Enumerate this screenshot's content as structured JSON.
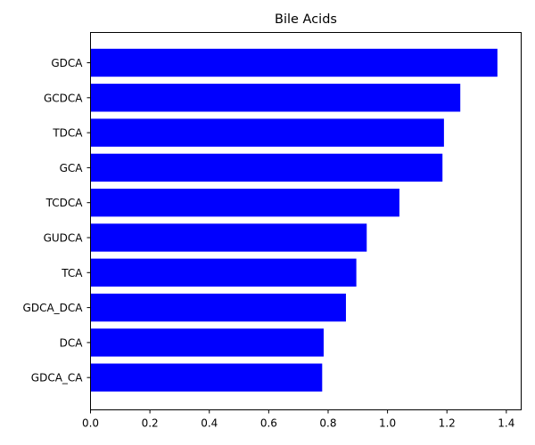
{
  "chart_data": {
    "type": "bar",
    "orientation": "horizontal",
    "title": "Bile Acids",
    "xlabel": "",
    "ylabel": "",
    "categories": [
      "GDCA",
      "GCDCA",
      "TDCA",
      "GCA",
      "TCDCA",
      "GUDCA",
      "TCA",
      "GDCA_DCA",
      "DCA",
      "GDCA_CA"
    ],
    "values": [
      1.37,
      1.245,
      1.19,
      1.185,
      1.04,
      0.93,
      0.895,
      0.86,
      0.785,
      0.78
    ],
    "xlim": [
      0,
      1.45
    ],
    "xticks": [
      "0.0",
      "0.2",
      "0.4",
      "0.6",
      "0.8",
      "1.0",
      "1.2",
      "1.4"
    ],
    "bar_color": "#0000ff",
    "grid": false,
    "legend": "none"
  }
}
